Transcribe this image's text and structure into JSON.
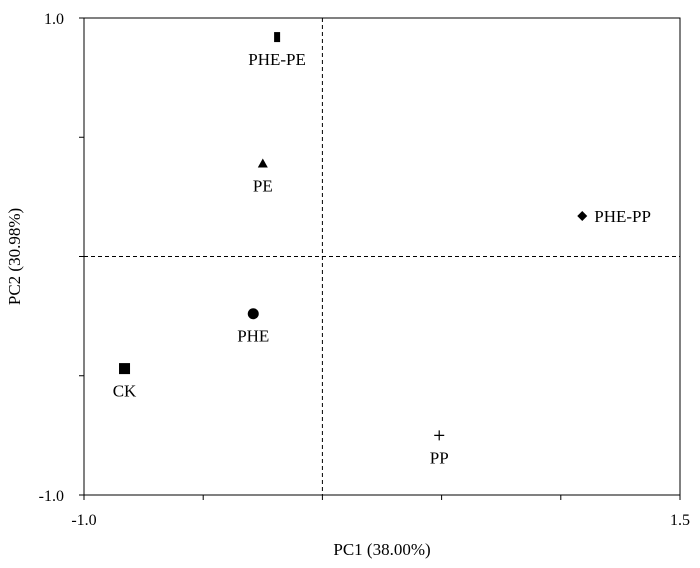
{
  "chart_data": {
    "type": "scatter",
    "title": "",
    "xlabel": "PC1 (38.00%)",
    "ylabel": "PC2 (30.98%)",
    "xlim": [
      -1.0,
      1.5
    ],
    "ylim": [
      -1.0,
      1.0
    ],
    "x_tick_labels": [
      "-1.0",
      "1.5"
    ],
    "y_tick_labels": [
      "1.0",
      "-1.0"
    ],
    "reference_lines": {
      "x": 0,
      "y": 0,
      "style": "dashed"
    },
    "grid": false,
    "legend": "none",
    "points": [
      {
        "label": "PHE-PE",
        "x": -0.19,
        "y": 0.92,
        "marker": "small-square"
      },
      {
        "label": "PE",
        "x": -0.25,
        "y": 0.39,
        "marker": "triangle"
      },
      {
        "label": "PHE-PP",
        "x": 1.09,
        "y": 0.17,
        "marker": "diamond"
      },
      {
        "label": "PHE",
        "x": -0.29,
        "y": -0.24,
        "marker": "circle"
      },
      {
        "label": "CK",
        "x": -0.83,
        "y": -0.47,
        "marker": "square"
      },
      {
        "label": "PP",
        "x": 0.49,
        "y": -0.75,
        "marker": "plus"
      }
    ]
  }
}
